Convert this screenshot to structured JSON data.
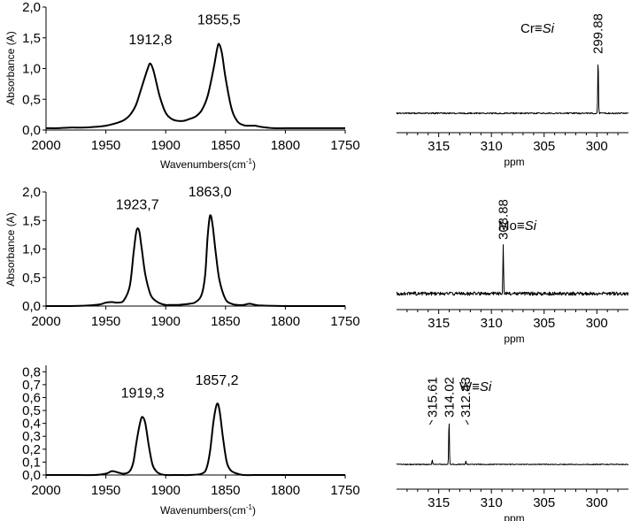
{
  "colors": {
    "line": "#000000",
    "background": "#ffffff"
  },
  "chart_data": [
    {
      "type": "line",
      "ylabel": "Absorbance (A)",
      "xlabel_main": "Wavenumbers(cm",
      "xlabel_sup": "-1",
      "xlabel_close": ")",
      "xlim": [
        2000,
        1750
      ],
      "ylim": [
        0,
        2.0
      ],
      "x_ticks": [
        2000,
        1950,
        1900,
        1850,
        1800,
        1750
      ],
      "x_tick_labels": [
        "2000",
        "1950",
        "1900",
        "1850",
        "1800",
        "1750"
      ],
      "y_ticks": [
        0,
        0.5,
        1.0,
        1.5,
        2.0
      ],
      "y_tick_labels": [
        "0,0",
        "0,5",
        "1,0",
        "1,5",
        "2,0"
      ],
      "peaks": [
        {
          "x": 1912.8,
          "label": "1912,8"
        },
        {
          "x": 1855.5,
          "label": "1855,5"
        }
      ],
      "series": [
        {
          "x": [
            2000,
            1990,
            1980,
            1970,
            1960,
            1950,
            1940,
            1935,
            1930,
            1925,
            1920,
            1915,
            1912.8,
            1910,
            1905,
            1900,
            1895,
            1890,
            1885,
            1880,
            1875,
            1870,
            1865,
            1860,
            1857,
            1855.5,
            1853,
            1850,
            1845,
            1840,
            1835,
            1830,
            1825,
            1820,
            1810,
            1800,
            1790,
            1780,
            1770,
            1760,
            1750
          ],
          "y": [
            0.03,
            0.03,
            0.04,
            0.04,
            0.05,
            0.07,
            0.12,
            0.16,
            0.24,
            0.4,
            0.7,
            1.0,
            1.08,
            0.95,
            0.55,
            0.28,
            0.18,
            0.15,
            0.15,
            0.18,
            0.22,
            0.32,
            0.55,
            1.0,
            1.32,
            1.4,
            1.25,
            0.85,
            0.35,
            0.14,
            0.08,
            0.07,
            0.07,
            0.05,
            0.03,
            0.03,
            0.03,
            0.03,
            0.03,
            0.03,
            0.03
          ]
        }
      ]
    },
    {
      "type": "line",
      "ylabel": "Absorbance (A)",
      "xlim": [
        2000,
        1750
      ],
      "ylim": [
        0,
        2.0
      ],
      "x_ticks": [
        2000,
        1950,
        1900,
        1850,
        1800,
        1750
      ],
      "x_tick_labels": [
        "2000",
        "1950",
        "1900",
        "1850",
        "1800",
        "1750"
      ],
      "y_ticks": [
        0,
        0.5,
        1.0,
        1.5,
        2.0
      ],
      "y_tick_labels": [
        "0,0",
        "0,5",
        "1,0",
        "1,5",
        "2,0"
      ],
      "peaks": [
        {
          "x": 1923.7,
          "label": "1923,7"
        },
        {
          "x": 1863.0,
          "label": "1863,0"
        }
      ],
      "series": [
        {
          "x": [
            2000,
            1980,
            1965,
            1955,
            1950,
            1945,
            1940,
            1935,
            1930,
            1927,
            1925,
            1923.7,
            1922,
            1920,
            1917,
            1913,
            1910,
            1905,
            1900,
            1895,
            1890,
            1885,
            1880,
            1875,
            1870,
            1867,
            1865,
            1863,
            1861,
            1858,
            1855,
            1850,
            1845,
            1840,
            1835,
            1830,
            1825,
            1820,
            1800,
            1780,
            1750
          ],
          "y": [
            0.0,
            0.0,
            0.01,
            0.03,
            0.06,
            0.07,
            0.06,
            0.1,
            0.35,
            0.9,
            1.25,
            1.36,
            1.3,
            1.0,
            0.55,
            0.22,
            0.12,
            0.05,
            0.02,
            0.02,
            0.02,
            0.03,
            0.04,
            0.07,
            0.2,
            0.55,
            1.2,
            1.58,
            1.45,
            0.9,
            0.45,
            0.12,
            0.04,
            0.02,
            0.02,
            0.04,
            0.02,
            0.01,
            0.0,
            0.0,
            0.0
          ]
        }
      ]
    },
    {
      "type": "line",
      "xlabel_main": "Wavenumbers(cm",
      "xlabel_sup": "-1",
      "xlabel_close": ")",
      "xlim": [
        2000,
        1750
      ],
      "ylim": [
        0,
        0.85
      ],
      "x_ticks": [
        2000,
        1950,
        1900,
        1850,
        1800,
        1750
      ],
      "x_tick_labels": [
        "2000",
        "1950",
        "1900",
        "1850",
        "1800",
        "1750"
      ],
      "y_ticks": [
        0,
        0.1,
        0.2,
        0.3,
        0.4,
        0.5,
        0.6,
        0.7,
        0.8
      ],
      "y_tick_labels": [
        "0,0",
        "0,1",
        "0,2",
        "0,3",
        "0,4",
        "0,5",
        "0,6",
        "0,7",
        "0,8"
      ],
      "peaks": [
        {
          "x": 1919.3,
          "label": "1919,3"
        },
        {
          "x": 1857.2,
          "label": "1857,2"
        }
      ],
      "series": [
        {
          "x": [
            2000,
            1980,
            1960,
            1950,
            1945,
            1940,
            1935,
            1930,
            1927,
            1924,
            1921,
            1919.3,
            1917,
            1914,
            1911,
            1908,
            1905,
            1900,
            1890,
            1880,
            1870,
            1866,
            1863,
            1860,
            1857.2,
            1855,
            1852,
            1849,
            1846,
            1843,
            1840,
            1835,
            1820,
            1800,
            1780,
            1750
          ],
          "y": [
            0.0,
            0.0,
            0.0,
            0.01,
            0.03,
            0.02,
            0.01,
            0.03,
            0.1,
            0.28,
            0.42,
            0.45,
            0.4,
            0.22,
            0.08,
            0.03,
            0.01,
            0.0,
            0.0,
            0.0,
            0.01,
            0.05,
            0.18,
            0.42,
            0.55,
            0.5,
            0.28,
            0.1,
            0.04,
            0.02,
            0.01,
            0.0,
            0.0,
            0.0,
            0.0,
            0.0
          ]
        }
      ]
    },
    {
      "type": "line",
      "xlabel": "ppm",
      "xlim": [
        319,
        297
      ],
      "x_ticks": [
        315,
        310,
        305,
        300
      ],
      "x_tick_labels": [
        "315",
        "310",
        "305",
        "300"
      ],
      "compound_metal": "Cr≡",
      "compound_ligand": "Si",
      "peaks": [
        {
          "x": 299.88,
          "label": "299.88"
        }
      ],
      "baseline": 0.0,
      "noise": 0.012,
      "peak_heights": [
        1.0
      ]
    },
    {
      "type": "line",
      "xlabel": "ppm",
      "xlim": [
        319,
        297
      ],
      "x_ticks": [
        315,
        310,
        305,
        300
      ],
      "x_tick_labels": [
        "315",
        "310",
        "305",
        "300"
      ],
      "compound_metal": "Mo≡",
      "compound_ligand": "Si",
      "peaks": [
        {
          "x": 308.88,
          "label": "308.88"
        }
      ],
      "baseline": 0.0,
      "noise": 0.035,
      "peak_heights": [
        1.0
      ]
    },
    {
      "type": "line",
      "xlabel": "ppm",
      "xlim": [
        319,
        297
      ],
      "x_ticks": [
        315,
        310,
        305,
        300
      ],
      "x_tick_labels": [
        "315",
        "310",
        "305",
        "300"
      ],
      "compound_metal": "W≡",
      "compound_ligand": "Si",
      "peaks": [
        {
          "x": 315.61,
          "label": "315.61"
        },
        {
          "x": 314.02,
          "label": "314.02"
        },
        {
          "x": 312.43,
          "label": "312.43"
        }
      ],
      "baseline": 0.0,
      "noise": 0.01,
      "peak_heights": [
        0.09,
        1.0,
        0.08
      ]
    }
  ]
}
